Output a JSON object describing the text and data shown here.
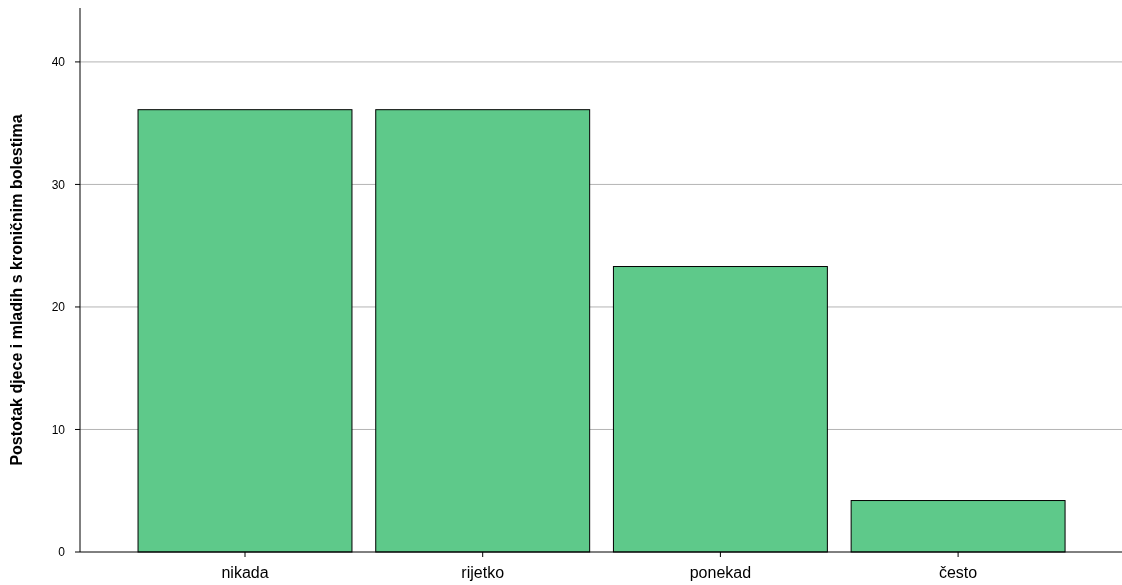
{
  "chart_data": {
    "type": "bar",
    "ylabel": "Postotak djece i mladih s kroničnim bolestima",
    "categories": [
      "nikada",
      "rijetko",
      "ponekad",
      "često"
    ],
    "values": [
      36.1,
      36.1,
      23.3,
      4.2
    ],
    "color": "#5ec98a",
    "ylim": [
      0,
      44.4
    ],
    "yticks": [
      0,
      10,
      20,
      30,
      40
    ],
    "grid": "y"
  }
}
